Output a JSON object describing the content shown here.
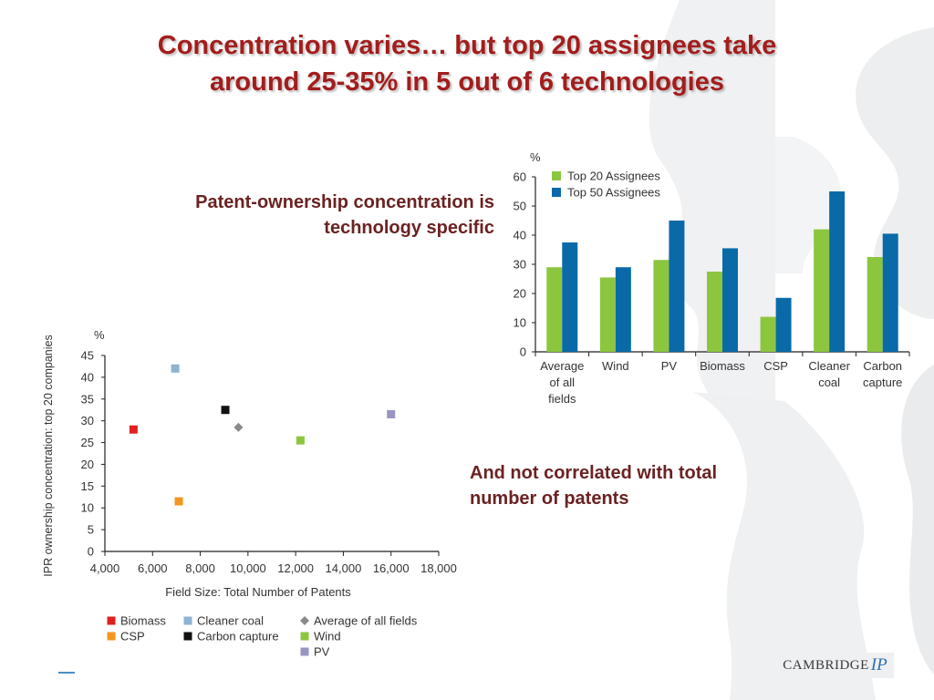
{
  "slide": {
    "title_line1": "Concentration varies… but top 20 assignees take",
    "title_line2": "around 25-35% in 5 out of 6 technologies",
    "subtitle_line1": "Patent-ownership concentration is",
    "subtitle_line2": "technology specific",
    "callout_line1": "And not correlated with total",
    "callout_line2": "number of patents",
    "logo_text": "CAMBRIDGE",
    "logo_mark": "IP"
  },
  "colors": {
    "title": "#a31d1d",
    "text_dark_red": "#6b2222",
    "top20": "#8cc63f",
    "top50": "#0a6aa8"
  },
  "chart_data": [
    {
      "type": "bar",
      "unit_label": "%",
      "categories": [
        "Average of all fields",
        "Wind",
        "PV",
        "Biomass",
        "CSP",
        "Cleaner coal",
        "Carbon capture"
      ],
      "category_labels": [
        [
          "Average",
          "of all",
          "fields"
        ],
        [
          "Wind"
        ],
        [
          "PV"
        ],
        [
          "Biomass"
        ],
        [
          "CSP"
        ],
        [
          "Cleaner",
          "coal"
        ],
        [
          "Carbon",
          "capture"
        ]
      ],
      "series": [
        {
          "name": "Top 20 Assignees",
          "color": "#8cc63f",
          "values": [
            29,
            25.5,
            31.5,
            27.5,
            12,
            42,
            32.5
          ]
        },
        {
          "name": "Top 50 Assignees",
          "color": "#0a6aa8",
          "values": [
            37.5,
            29,
            45,
            35.5,
            18.5,
            55,
            40.5
          ]
        }
      ],
      "ylim": [
        0,
        60
      ],
      "yticks": [
        0,
        10,
        20,
        30,
        40,
        50,
        60
      ],
      "legend_position": "top-left",
      "grid": false
    },
    {
      "type": "scatter",
      "unit_label": "%",
      "xlabel": "Field Size: Total Number of Patents",
      "ylabel": "IPR ownership concentration: top 20 companies",
      "xlim": [
        4000,
        18000
      ],
      "ylim": [
        0,
        45
      ],
      "xticks": [
        4000,
        6000,
        8000,
        10000,
        12000,
        14000,
        16000,
        18000
      ],
      "xtick_labels": [
        "4,000",
        "6,000",
        "8,000",
        "10,000",
        "12,000",
        "14,000",
        "16,000",
        "18,000"
      ],
      "yticks": [
        0,
        5,
        10,
        15,
        20,
        25,
        30,
        35,
        40,
        45
      ],
      "grid": false,
      "legend_position": "bottom",
      "points": [
        {
          "name": "Biomass",
          "x": 5200,
          "y": 28,
          "color": "#e02020",
          "marker": "square"
        },
        {
          "name": "Cleaner coal",
          "x": 6950,
          "y": 42,
          "color": "#8db4d2",
          "marker": "square"
        },
        {
          "name": "Average of all fields",
          "x": 9600,
          "y": 28.5,
          "color": "#8a8a8a",
          "marker": "diamond"
        },
        {
          "name": "CSP",
          "x": 7100,
          "y": 11.5,
          "color": "#f5961e",
          "marker": "square"
        },
        {
          "name": "Carbon capture",
          "x": 9050,
          "y": 32.5,
          "color": "#111111",
          "marker": "square"
        },
        {
          "name": "Wind",
          "x": 12200,
          "y": 25.5,
          "color": "#8cc63f",
          "marker": "square"
        },
        {
          "name": "PV",
          "x": 16000,
          "y": 31.5,
          "color": "#9896c0",
          "marker": "square"
        }
      ],
      "legend_columns": [
        [
          "Biomass",
          "CSP"
        ],
        [
          "Cleaner coal",
          "Carbon capture"
        ],
        [
          "Average of all fields",
          "Wind",
          "PV"
        ]
      ]
    }
  ]
}
